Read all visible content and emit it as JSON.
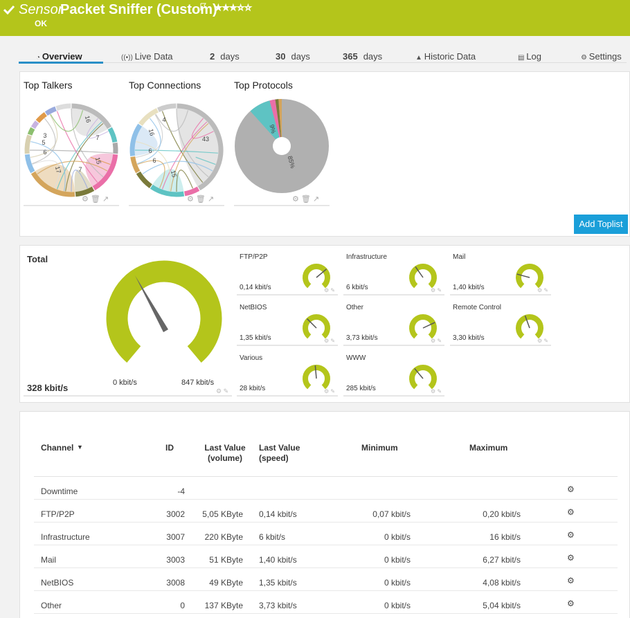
{
  "header": {
    "prefix": "Sensor",
    "title": "Packet Sniffer (Custom)",
    "status": "OK"
  },
  "tabs": [
    {
      "label": "Overview"
    },
    {
      "label": "Live Data"
    },
    {
      "number": "2",
      "label": "days"
    },
    {
      "number": "30",
      "label": "days"
    },
    {
      "number": "365",
      "label": "days"
    },
    {
      "label": "Historic Data"
    },
    {
      "label": "Log"
    },
    {
      "label": "Settings"
    }
  ],
  "toplists": [
    {
      "title": "Top Talkers",
      "labels": [
        "16",
        "7",
        "15",
        "7",
        "17",
        "6",
        "5",
        "3"
      ]
    },
    {
      "title": "Top Connections",
      "labels": [
        "16",
        "4",
        "43",
        "6",
        "6",
        "15"
      ]
    },
    {
      "title": "Top Protocols",
      "labels": [
        "9%",
        "85%"
      ]
    }
  ],
  "add_button": "Add Toplist",
  "total_gauge": {
    "label": "Total",
    "value": "328 kbit/s",
    "min": "0 kbit/s",
    "max": "847 kbit/s"
  },
  "gauges": [
    {
      "name": "FTP/P2P",
      "value": "0,14 kbit/s"
    },
    {
      "name": "Infrastructure",
      "value": "6 kbit/s"
    },
    {
      "name": "Mail",
      "value": "1,40 kbit/s"
    },
    {
      "name": "NetBIOS",
      "value": "1,35 kbit/s"
    },
    {
      "name": "Other",
      "value": "3,73 kbit/s"
    },
    {
      "name": "Remote Control",
      "value": "3,30 kbit/s"
    },
    {
      "name": "Various",
      "value": "28 kbit/s"
    },
    {
      "name": "WWW",
      "value": "285 kbit/s"
    }
  ],
  "table": {
    "headers": [
      "Channel",
      "ID",
      "Last Value (volume)",
      "Last Value (speed)",
      "Minimum",
      "Maximum"
    ],
    "rows": [
      {
        "channel": "Downtime",
        "id": -4
      },
      {
        "channel": "FTP/P2P",
        "id": 3002,
        "volume": "5,05 KByte",
        "speed": "0,14 kbit/s",
        "min": "0,07 kbit/s",
        "max": "0,20 kbit/s"
      },
      {
        "channel": "Infrastructure",
        "id": 3007,
        "volume": "220 KByte",
        "speed": "6 kbit/s",
        "min": "0 kbit/s",
        "max": "16 kbit/s"
      },
      {
        "channel": "Mail",
        "id": 3003,
        "volume": "51 KByte",
        "speed": "1,40 kbit/s",
        "min": "0 kbit/s",
        "max": "6,27 kbit/s"
      },
      {
        "channel": "NetBIOS",
        "id": 3008,
        "volume": "49 KByte",
        "speed": "1,35 kbit/s",
        "min": "0 kbit/s",
        "max": "4,08 kbit/s"
      },
      {
        "channel": "Other",
        "id": 0,
        "volume": "137 KByte",
        "speed": "3,73 kbit/s",
        "min": "0 kbit/s",
        "max": "5,04 kbit/s"
      }
    ]
  }
}
